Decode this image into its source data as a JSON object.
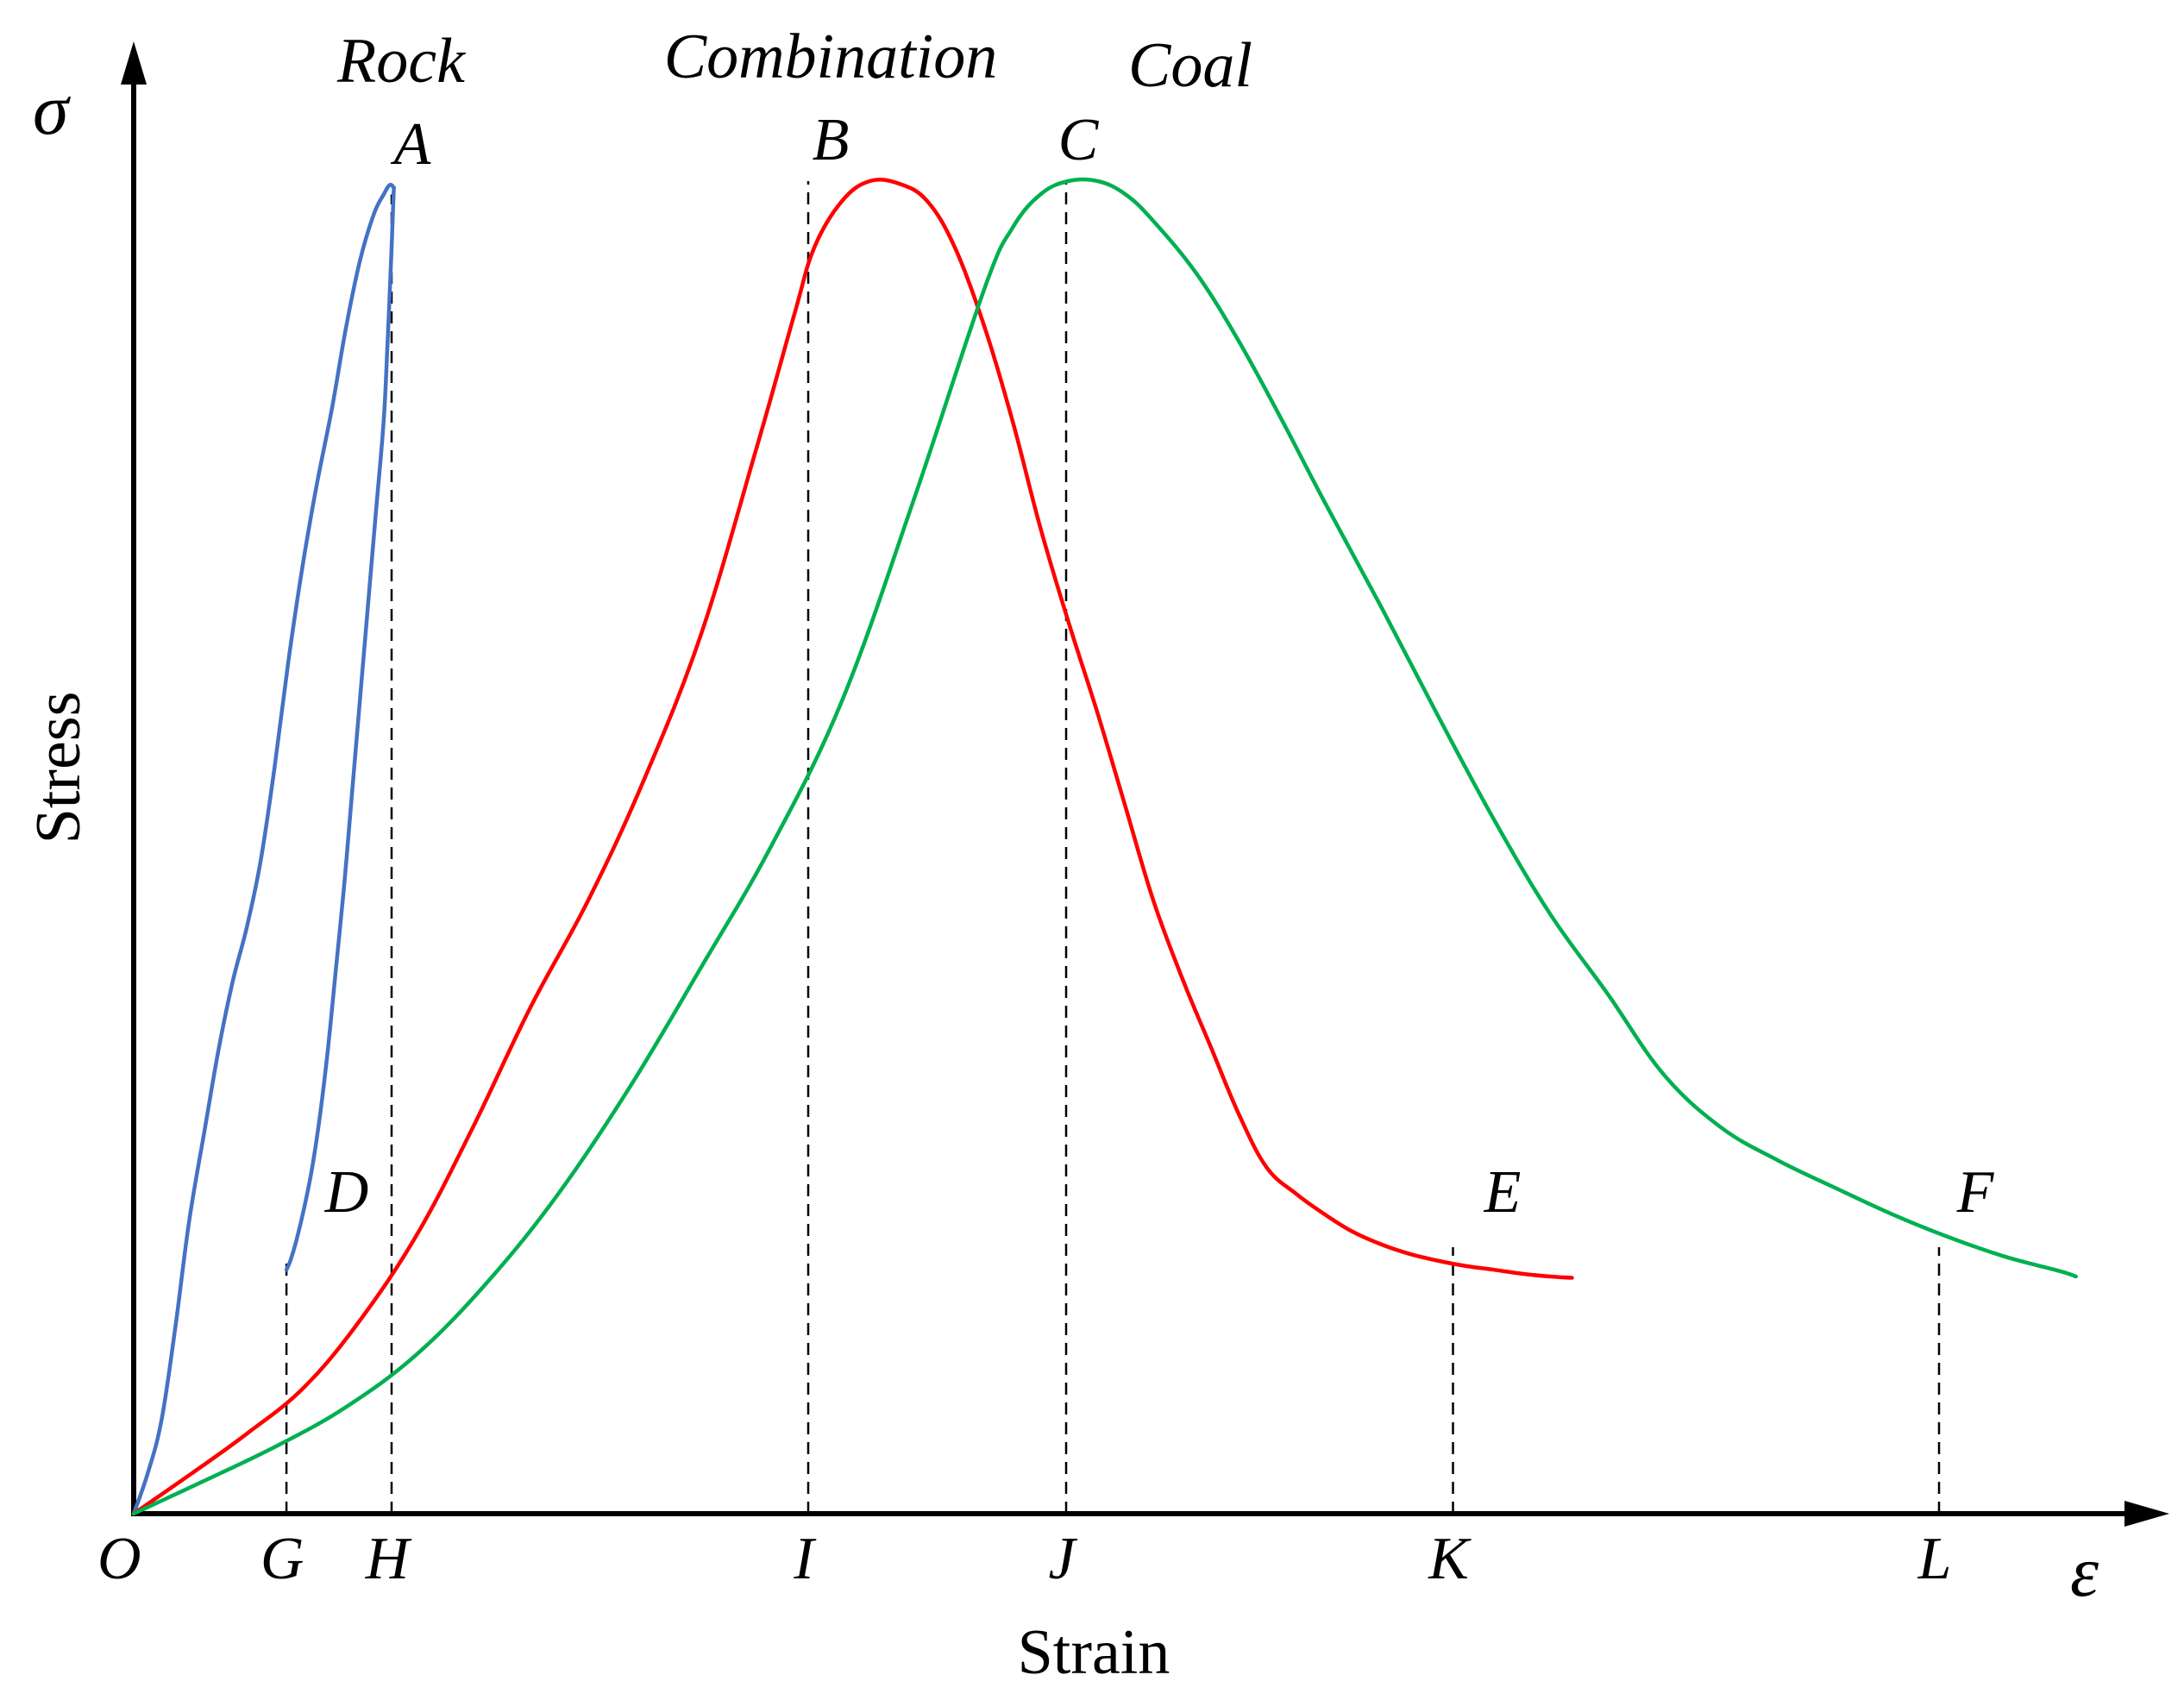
{
  "chart_data": {
    "type": "line",
    "xlabel": "Strain",
    "ylabel": "Stress",
    "x_symbol": "ε",
    "y_symbol": "σ",
    "origin_label": "O",
    "colors": {
      "rock": "#4472c4",
      "combination": "#ff0000",
      "coal": "#00b050",
      "axis": "#000000"
    },
    "series": [
      {
        "name": "Rock",
        "key": "rock",
        "peak_label": "A",
        "end_label": "D",
        "x": [
          0,
          0.007,
          0.014,
          0.021,
          0.028,
          0.036,
          0.043,
          0.05,
          0.057,
          0.064,
          0.071,
          0.078,
          0.085,
          0.092,
          0.1,
          0.107,
          0.114,
          0.121,
          0.126,
          0.129,
          0.131,
          0.131,
          0.13,
          0.128,
          0.126,
          0.122,
          0.118,
          0.114,
          0.11,
          0.106,
          0.102,
          0.098,
          0.094,
          0.09,
          0.086,
          0.082,
          0.079,
          0.077
        ],
        "y": [
          0,
          0.03,
          0.07,
          0.14,
          0.22,
          0.29,
          0.35,
          0.4,
          0.44,
          0.49,
          0.56,
          0.64,
          0.71,
          0.77,
          0.83,
          0.89,
          0.94,
          0.975,
          0.99,
          0.997,
          0.995,
          0.99,
          0.95,
          0.88,
          0.82,
          0.75,
          0.68,
          0.61,
          0.54,
          0.47,
          0.41,
          0.35,
          0.3,
          0.26,
          0.23,
          0.205,
          0.19,
          0.183
        ]
      },
      {
        "name": "Combination",
        "key": "combination",
        "peak_label": "B",
        "end_label": "E",
        "x": [
          0,
          0.029,
          0.057,
          0.086,
          0.114,
          0.143,
          0.171,
          0.2,
          0.229,
          0.257,
          0.286,
          0.314,
          0.333,
          0.343,
          0.357,
          0.371,
          0.386,
          0.4,
          0.414,
          0.429,
          0.443,
          0.457,
          0.471,
          0.486,
          0.5,
          0.514,
          0.529,
          0.543,
          0.557,
          0.571,
          0.586,
          0.6,
          0.614,
          0.629,
          0.643,
          0.657,
          0.671,
          0.686,
          0.7,
          0.714,
          0.725
        ],
        "y": [
          0,
          0.03,
          0.06,
          0.095,
          0.145,
          0.21,
          0.29,
          0.38,
          0.46,
          0.55,
          0.66,
          0.8,
          0.9,
          0.95,
          0.985,
          1.0,
          0.998,
          0.985,
          0.95,
          0.89,
          0.82,
          0.74,
          0.67,
          0.6,
          0.53,
          0.46,
          0.4,
          0.35,
          0.3,
          0.26,
          0.24,
          0.225,
          0.212,
          0.202,
          0.195,
          0.19,
          0.186,
          0.183,
          0.18,
          0.178,
          0.177
        ]
      },
      {
        "name": "Coal",
        "key": "coal",
        "peak_label": "C",
        "end_label": "F",
        "x": [
          0,
          0.036,
          0.071,
          0.107,
          0.143,
          0.179,
          0.214,
          0.25,
          0.286,
          0.321,
          0.357,
          0.393,
          0.429,
          0.443,
          0.457,
          0.471,
          0.486,
          0.5,
          0.514,
          0.536,
          0.557,
          0.579,
          0.6,
          0.629,
          0.657,
          0.686,
          0.714,
          0.743,
          0.771,
          0.8,
          0.829,
          0.857,
          0.886,
          0.914,
          0.943,
          0.971,
          0.979
        ],
        "y": [
          0,
          0.025,
          0.05,
          0.08,
          0.12,
          0.175,
          0.24,
          0.32,
          0.41,
          0.5,
          0.61,
          0.76,
          0.92,
          0.965,
          0.99,
          1.0,
          1.0,
          0.99,
          0.97,
          0.93,
          0.88,
          0.82,
          0.76,
          0.68,
          0.6,
          0.52,
          0.45,
          0.39,
          0.33,
          0.29,
          0.265,
          0.245,
          0.225,
          0.208,
          0.193,
          0.182,
          0.178
        ]
      }
    ],
    "markers": [
      {
        "label": "G",
        "x": 0.077,
        "y": 0.19
      },
      {
        "label": "H",
        "x": 0.13,
        "y": 0.99
      },
      {
        "label": "I",
        "x": 0.34,
        "y": 1.0
      },
      {
        "label": "J",
        "x": 0.47,
        "y": 1.0
      },
      {
        "label": "K",
        "x": 0.665,
        "y": 0.2
      },
      {
        "label": "L",
        "x": 0.91,
        "y": 0.2
      }
    ],
    "xlim": [
      0,
      1
    ],
    "ylim": [
      0,
      1
    ],
    "ticks": "none",
    "grid": false,
    "legend": "curve labels above peaks"
  }
}
